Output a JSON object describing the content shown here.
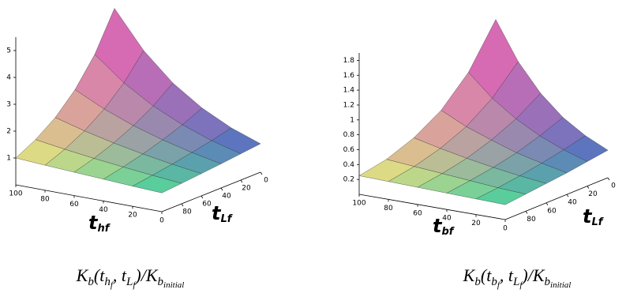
{
  "chart_data": [
    {
      "type": "surface",
      "x_label": {
        "text": "t",
        "sub": [
          {
            "text": "h",
            "sub": [
              {
                "text": "f"
              }
            ]
          }
        ]
      },
      "y_label": {
        "text": "t",
        "sub": [
          {
            "text": "L",
            "sub": [
              {
                "text": "f"
              }
            ]
          }
        ]
      },
      "caption": [
        {
          "text": "K",
          "sub": [
            {
              "text": "b"
            }
          ]
        },
        {
          "text": "(t",
          "sub": [
            {
              "text": "h",
              "sub": [
                {
                  "text": "f"
                }
              ]
            }
          ]
        },
        {
          "text": ", t",
          "sub": [
            {
              "text": "L",
              "sub": [
                {
                  "text": "f"
                }
              ]
            }
          ]
        },
        {
          "text": ")/K",
          "sub": [
            {
              "text": "b",
              "sub": [
                {
                  "text": "initial"
                }
              ]
            }
          ]
        }
      ],
      "x": [
        0,
        20,
        40,
        60,
        80,
        100
      ],
      "y": [
        0,
        20,
        40,
        60,
        80,
        100
      ],
      "z": [
        [
          1.06,
          0.98,
          0.9,
          0.83,
          0.76,
          0.7
        ],
        [
          1.45,
          1.27,
          1.12,
          0.98,
          0.86,
          0.75
        ],
        [
          1.99,
          1.66,
          1.39,
          1.16,
          0.97,
          0.81
        ],
        [
          2.72,
          2.16,
          1.72,
          1.37,
          1.09,
          0.87
        ],
        [
          3.73,
          2.82,
          2.14,
          1.62,
          1.23,
          0.93
        ],
        [
          5.1,
          3.68,
          2.66,
          1.92,
          1.39,
          1.0
        ]
      ],
      "xlim": [
        0,
        100
      ],
      "ylim": [
        0,
        100
      ],
      "zlim": [
        0,
        5.5
      ],
      "xticks": [
        0,
        20,
        40,
        60,
        80,
        100
      ],
      "yticks": [
        0,
        20,
        40,
        60,
        80
      ],
      "zticks": [
        1,
        2,
        3,
        4,
        5
      ],
      "corner_colors": [
        "#eeea7c",
        "#48d69a",
        "#4f6cc4",
        "#e45cb8"
      ]
    },
    {
      "type": "surface",
      "x_label": {
        "text": "t",
        "sub": [
          {
            "text": "b",
            "sub": [
              {
                "text": "f"
              }
            ]
          }
        ]
      },
      "y_label": {
        "text": "t",
        "sub": [
          {
            "text": "L",
            "sub": [
              {
                "text": "f"
              }
            ]
          }
        ]
      },
      "caption": [
        {
          "text": "K",
          "sub": [
            {
              "text": "b"
            }
          ]
        },
        {
          "text": "(t",
          "sub": [
            {
              "text": "b",
              "sub": [
                {
                  "text": "f"
                }
              ]
            }
          ]
        },
        {
          "text": ", t",
          "sub": [
            {
              "text": "L",
              "sub": [
                {
                  "text": "f"
                }
              ]
            }
          ]
        },
        {
          "text": ")/K",
          "sub": [
            {
              "text": "b",
              "sub": [
                {
                  "text": "initial"
                }
              ]
            }
          ]
        }
      ],
      "x": [
        0,
        20,
        40,
        60,
        80,
        100
      ],
      "y": [
        0,
        20,
        40,
        60,
        80,
        100
      ],
      "z": [
        [
          0.37,
          0.33,
          0.29,
          0.26,
          0.23,
          0.2
        ],
        [
          0.51,
          0.43,
          0.36,
          0.3,
          0.25,
          0.21
        ],
        [
          0.7,
          0.56,
          0.44,
          0.35,
          0.28,
          0.22
        ],
        [
          0.97,
          0.73,
          0.55,
          0.41,
          0.31,
          0.23
        ],
        [
          1.34,
          0.95,
          0.67,
          0.48,
          0.34,
          0.24
        ],
        [
          1.85,
          1.24,
          0.83,
          0.56,
          0.37,
          0.25
        ]
      ],
      "xlim": [
        0,
        100
      ],
      "ylim": [
        0,
        100
      ],
      "zlim": [
        0,
        1.9
      ],
      "xticks": [
        0,
        20,
        40,
        60,
        80,
        100
      ],
      "yticks": [
        0,
        20,
        40,
        60,
        80
      ],
      "zticks": [
        0.2,
        0.4,
        0.6,
        0.8,
        1,
        1.2,
        1.4,
        1.6,
        1.8
      ],
      "corner_colors": [
        "#eeea7c",
        "#48d69a",
        "#4f6cc4",
        "#e45cb8"
      ]
    }
  ]
}
